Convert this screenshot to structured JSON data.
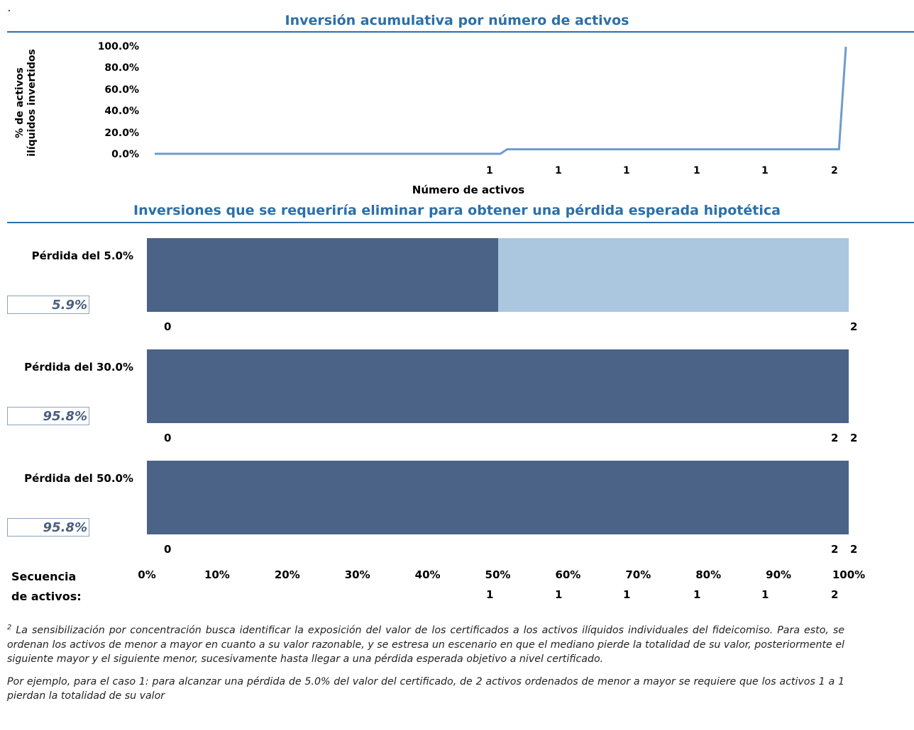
{
  "chart1": {
    "title": "Inversión acumulativa por número de activos",
    "ylabel_line1": "% de activos",
    "ylabel_line2": "ilíquidos invertidos",
    "xlabel": "Número de activos",
    "yticks": [
      "100.0%",
      "80.0%",
      "60.0%",
      "40.0%",
      "20.0%",
      "0.0%"
    ],
    "xticks": [
      "1",
      "1",
      "1",
      "1",
      "1",
      "2"
    ]
  },
  "chart2": {
    "title": "Inversiones que se requeriría eliminar para obtener una pérdida esperada hipotética",
    "sequence_label_line1": "Secuencia",
    "sequence_label_line2": "de activos:",
    "pct_ticks": [
      "0%",
      "10%",
      "20%",
      "30%",
      "40%",
      "50%",
      "60%",
      "70%",
      "80%",
      "90%",
      "100%"
    ],
    "sequence_ticks": [
      "1",
      "1",
      "1",
      "1",
      "1",
      "2"
    ],
    "rows": [
      {
        "label": "Pérdida del 5.0%",
        "value": "5.9%",
        "start_label": "0",
        "end_labels": [
          "2"
        ]
      },
      {
        "label": "Pérdida del 30.0%",
        "value": "95.8%",
        "start_label": "0",
        "end_labels": [
          "2",
          "2"
        ]
      },
      {
        "label": "Pérdida del 50.0%",
        "value": "95.8%",
        "start_label": "0",
        "end_labels": [
          "2",
          "2"
        ]
      }
    ]
  },
  "footnote": {
    "marker": "2",
    "paragraph1": "La sensibilización por concentración busca identificar la exposición del valor de los certificados a los activos ilíquidos individuales del fideicomiso. Para esto, se ordenan los activos de menor a mayor en cuanto a su valor razonable, y se estresa un escenario en que el mediano pierde la totalidad de su valor, posteriormente el siguiente mayor y el siguiente menor, sucesivamente hasta llegar a una pérdida esperada objetivo a nivel certificado.",
    "paragraph2": "Por ejemplo, para el caso 1: para alcanzar una pérdida de 5.0% del valor del certificado, de 2 activos ordenados de menor a mayor se requiere que los activos 1 a 1 pierdan la totalidad de su valor"
  },
  "colors": {
    "dark_bar": "#4a6387",
    "light_bar": "#abc6df",
    "line": "#6d9ccc",
    "title": "#2c6fa8"
  },
  "chart_data": [
    {
      "type": "line",
      "title": "Inversión acumulativa por número de activos",
      "xlabel": "Número de activos",
      "ylabel": "% de activos ilíquidos invertidos",
      "ylim": [
        0,
        100
      ],
      "x": [
        0,
        50,
        51,
        99,
        100
      ],
      "series": [
        {
          "values": [
            0,
            0,
            4.2,
            4.2,
            100
          ]
        }
      ]
    },
    {
      "type": "bar",
      "title": "Inversiones que se requeriría eliminar para obtener una pérdida esperada hipotética",
      "categories": [
        "Pérdida del 5.0%",
        "Pérdida del 30.0%",
        "Pérdida del 50.0%"
      ],
      "xlim": [
        0,
        100
      ],
      "series": [
        {
          "values": [
            50,
            100,
            100
          ]
        },
        {
          "values": [
            50,
            0,
            0
          ]
        }
      ]
    }
  ]
}
